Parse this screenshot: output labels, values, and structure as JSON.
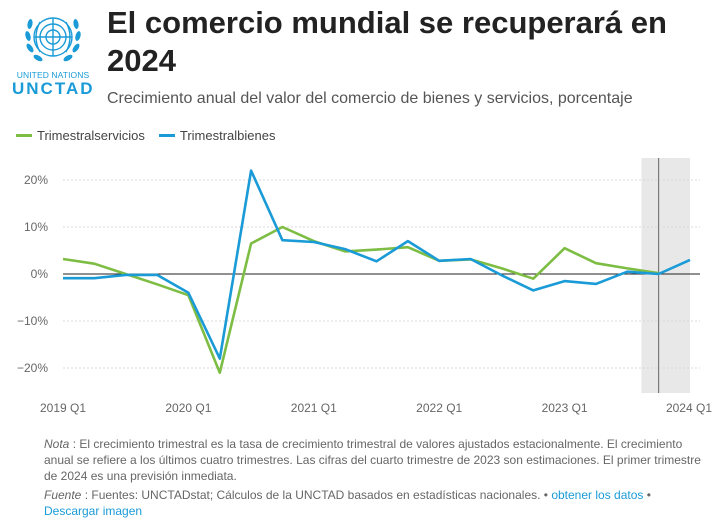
{
  "header": {
    "title": "El comercio mundial se recuperará en 2024",
    "subtitle": "Crecimiento anual del valor del comercio de bienes y servicios, porcentaje",
    "logo": {
      "line1": "UNITED NATIONS",
      "line2": "UNCTAD"
    }
  },
  "colors": {
    "servicios": "#7dbd44",
    "bienes": "#1a9bd7",
    "forecast": "#e8e8e8",
    "grid": "#d9d9d9"
  },
  "chart_data": {
    "type": "line",
    "title": "El comercio mundial se recuperará en 2024",
    "subtitle": "Crecimiento anual del valor del comercio de bienes y servicios, porcentaje",
    "xlabel": "",
    "ylabel": "",
    "ylim": [
      -25,
      25
    ],
    "yticks": [
      20,
      10,
      0,
      -10,
      -20
    ],
    "ytick_labels": [
      "20%",
      "10%",
      "0%",
      "−10%",
      "−20%"
    ],
    "x": [
      "2019 Q1",
      "2019 Q2",
      "2019 Q3",
      "2019 Q4",
      "2020 Q1",
      "2020 Q2",
      "2020 Q3",
      "2020 Q4",
      "2021 Q1",
      "2021 Q2",
      "2021 Q3",
      "2021 Q4",
      "2022 Q1",
      "2022 Q2",
      "2022 Q3",
      "2022 Q4",
      "2023 Q1",
      "2023 Q2",
      "2023 Q3",
      "2023 Q4",
      "2024 Q1"
    ],
    "xtick_labels": [
      "2019 Q1",
      "2020 Q1",
      "2021 Q1",
      "2022 Q1",
      "2023 Q1",
      "2024 Q1"
    ],
    "forecast_range": [
      "2023 Q4",
      "2024 Q1"
    ],
    "series": [
      {
        "name": "Trimestralservicios",
        "color": "#7dbd44",
        "values": [
          3.2,
          2.2,
          0.0,
          -2.2,
          -4.5,
          -21,
          6.5,
          10,
          7,
          4.8,
          5.2,
          5.7,
          2.8,
          3.1,
          1.2,
          -1,
          5.5,
          2.3,
          1.2,
          0.2,
          null
        ]
      },
      {
        "name": "Trimestralbienes",
        "color": "#1a9bd7",
        "values": [
          -0.9,
          -0.9,
          -0.2,
          -0.2,
          -4,
          -18,
          22,
          7.2,
          6.8,
          5.3,
          2.7,
          7,
          2.8,
          3.2,
          -0.3,
          -3.5,
          -1.5,
          -2.1,
          0.5,
          0,
          3
        ]
      }
    ]
  },
  "notes": {
    "nota_label": "Nota",
    "nota_text": " : El crecimiento trimestral es la tasa de crecimiento trimestral de valores ajustados estacionalmente. El crecimiento anual se refiere a los últimos cuatro trimestres. Las cifras del cuarto trimestre de 2023 son estimaciones. El primer trimestre de 2024 es una previsión inmediata.",
    "fuente_label": "Fuente",
    "fuente_text": " : Fuentes: UNCTADstat; Cálculos de la UNCTAD basados en estadísticas nacionales.",
    "sep1": " • ",
    "link_data": "obtener los datos",
    "sep2": " • ",
    "link_image": "Descargar imagen"
  }
}
